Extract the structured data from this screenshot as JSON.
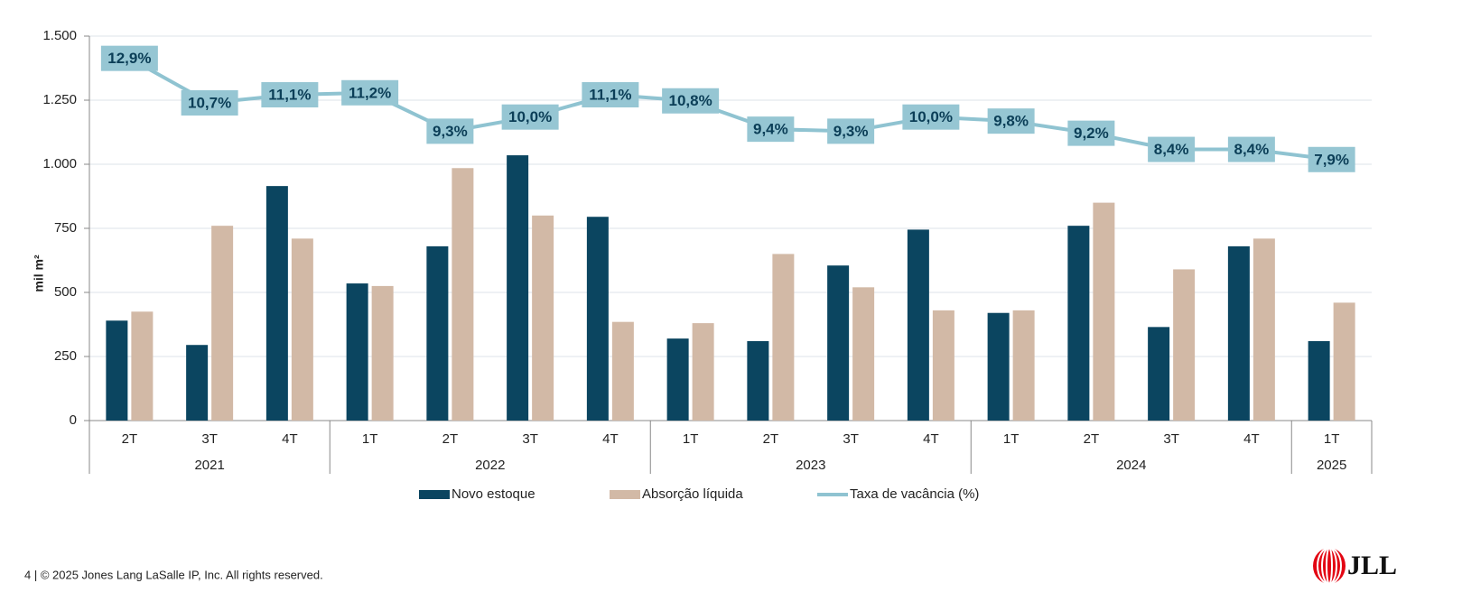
{
  "chart_data": {
    "type": "bar",
    "y_axis_label": "mil m²",
    "categories": [
      "2T",
      "3T",
      "4T",
      "1T",
      "2T",
      "3T",
      "4T",
      "1T",
      "2T",
      "3T",
      "4T",
      "1T",
      "2T",
      "3T",
      "4T",
      "1T"
    ],
    "category_groups": [
      {
        "label": "2021",
        "count": 3
      },
      {
        "label": "2022",
        "count": 4
      },
      {
        "label": "2023",
        "count": 4
      },
      {
        "label": "2024",
        "count": 4
      },
      {
        "label": "2025",
        "count": 1
      }
    ],
    "series": [
      {
        "name": "Novo estoque",
        "type": "bar",
        "color": "#0b4560",
        "values": [
          390,
          295,
          915,
          535,
          680,
          1035,
          795,
          320,
          310,
          605,
          745,
          420,
          760,
          365,
          680,
          310
        ]
      },
      {
        "name": "Absorção líquida",
        "type": "bar",
        "color": "#d2b9a6",
        "values": [
          425,
          760,
          710,
          525,
          985,
          800,
          385,
          380,
          650,
          520,
          430,
          430,
          850,
          590,
          710,
          460
        ]
      },
      {
        "name": "Taxa de vacância (%)",
        "type": "line",
        "axis": "y2",
        "color": "#8fc3d1",
        "label_color": "#96c6d3",
        "values": [
          12.9,
          10.7,
          11.1,
          11.2,
          9.3,
          10.0,
          11.1,
          10.8,
          9.4,
          9.3,
          10.0,
          9.8,
          9.2,
          8.4,
          8.4,
          7.9
        ],
        "value_labels": [
          "12,9%",
          "10,7%",
          "11,1%",
          "11,2%",
          "9,3%",
          "10,0%",
          "11,1%",
          "10,8%",
          "9,4%",
          "9,3%",
          "10,0%",
          "9,8%",
          "9,2%",
          "8,4%",
          "8,4%",
          "7,9%"
        ]
      }
    ],
    "ylim": [
      0,
      1500
    ],
    "yticks": [
      0,
      250,
      500,
      750,
      {
        "value": 1000,
        "label": "1.000"
      },
      {
        "value": 1250,
        "label": "1.250"
      },
      {
        "value": 1500,
        "label": "1.500"
      }
    ],
    "y2lim": [
      -5,
      14
    ],
    "grid": true,
    "legend": "bottom"
  },
  "footer": {
    "text": "4  |  © 2025 Jones Lang LaSalle IP, Inc. All rights reserved.",
    "logo": "JLL"
  }
}
